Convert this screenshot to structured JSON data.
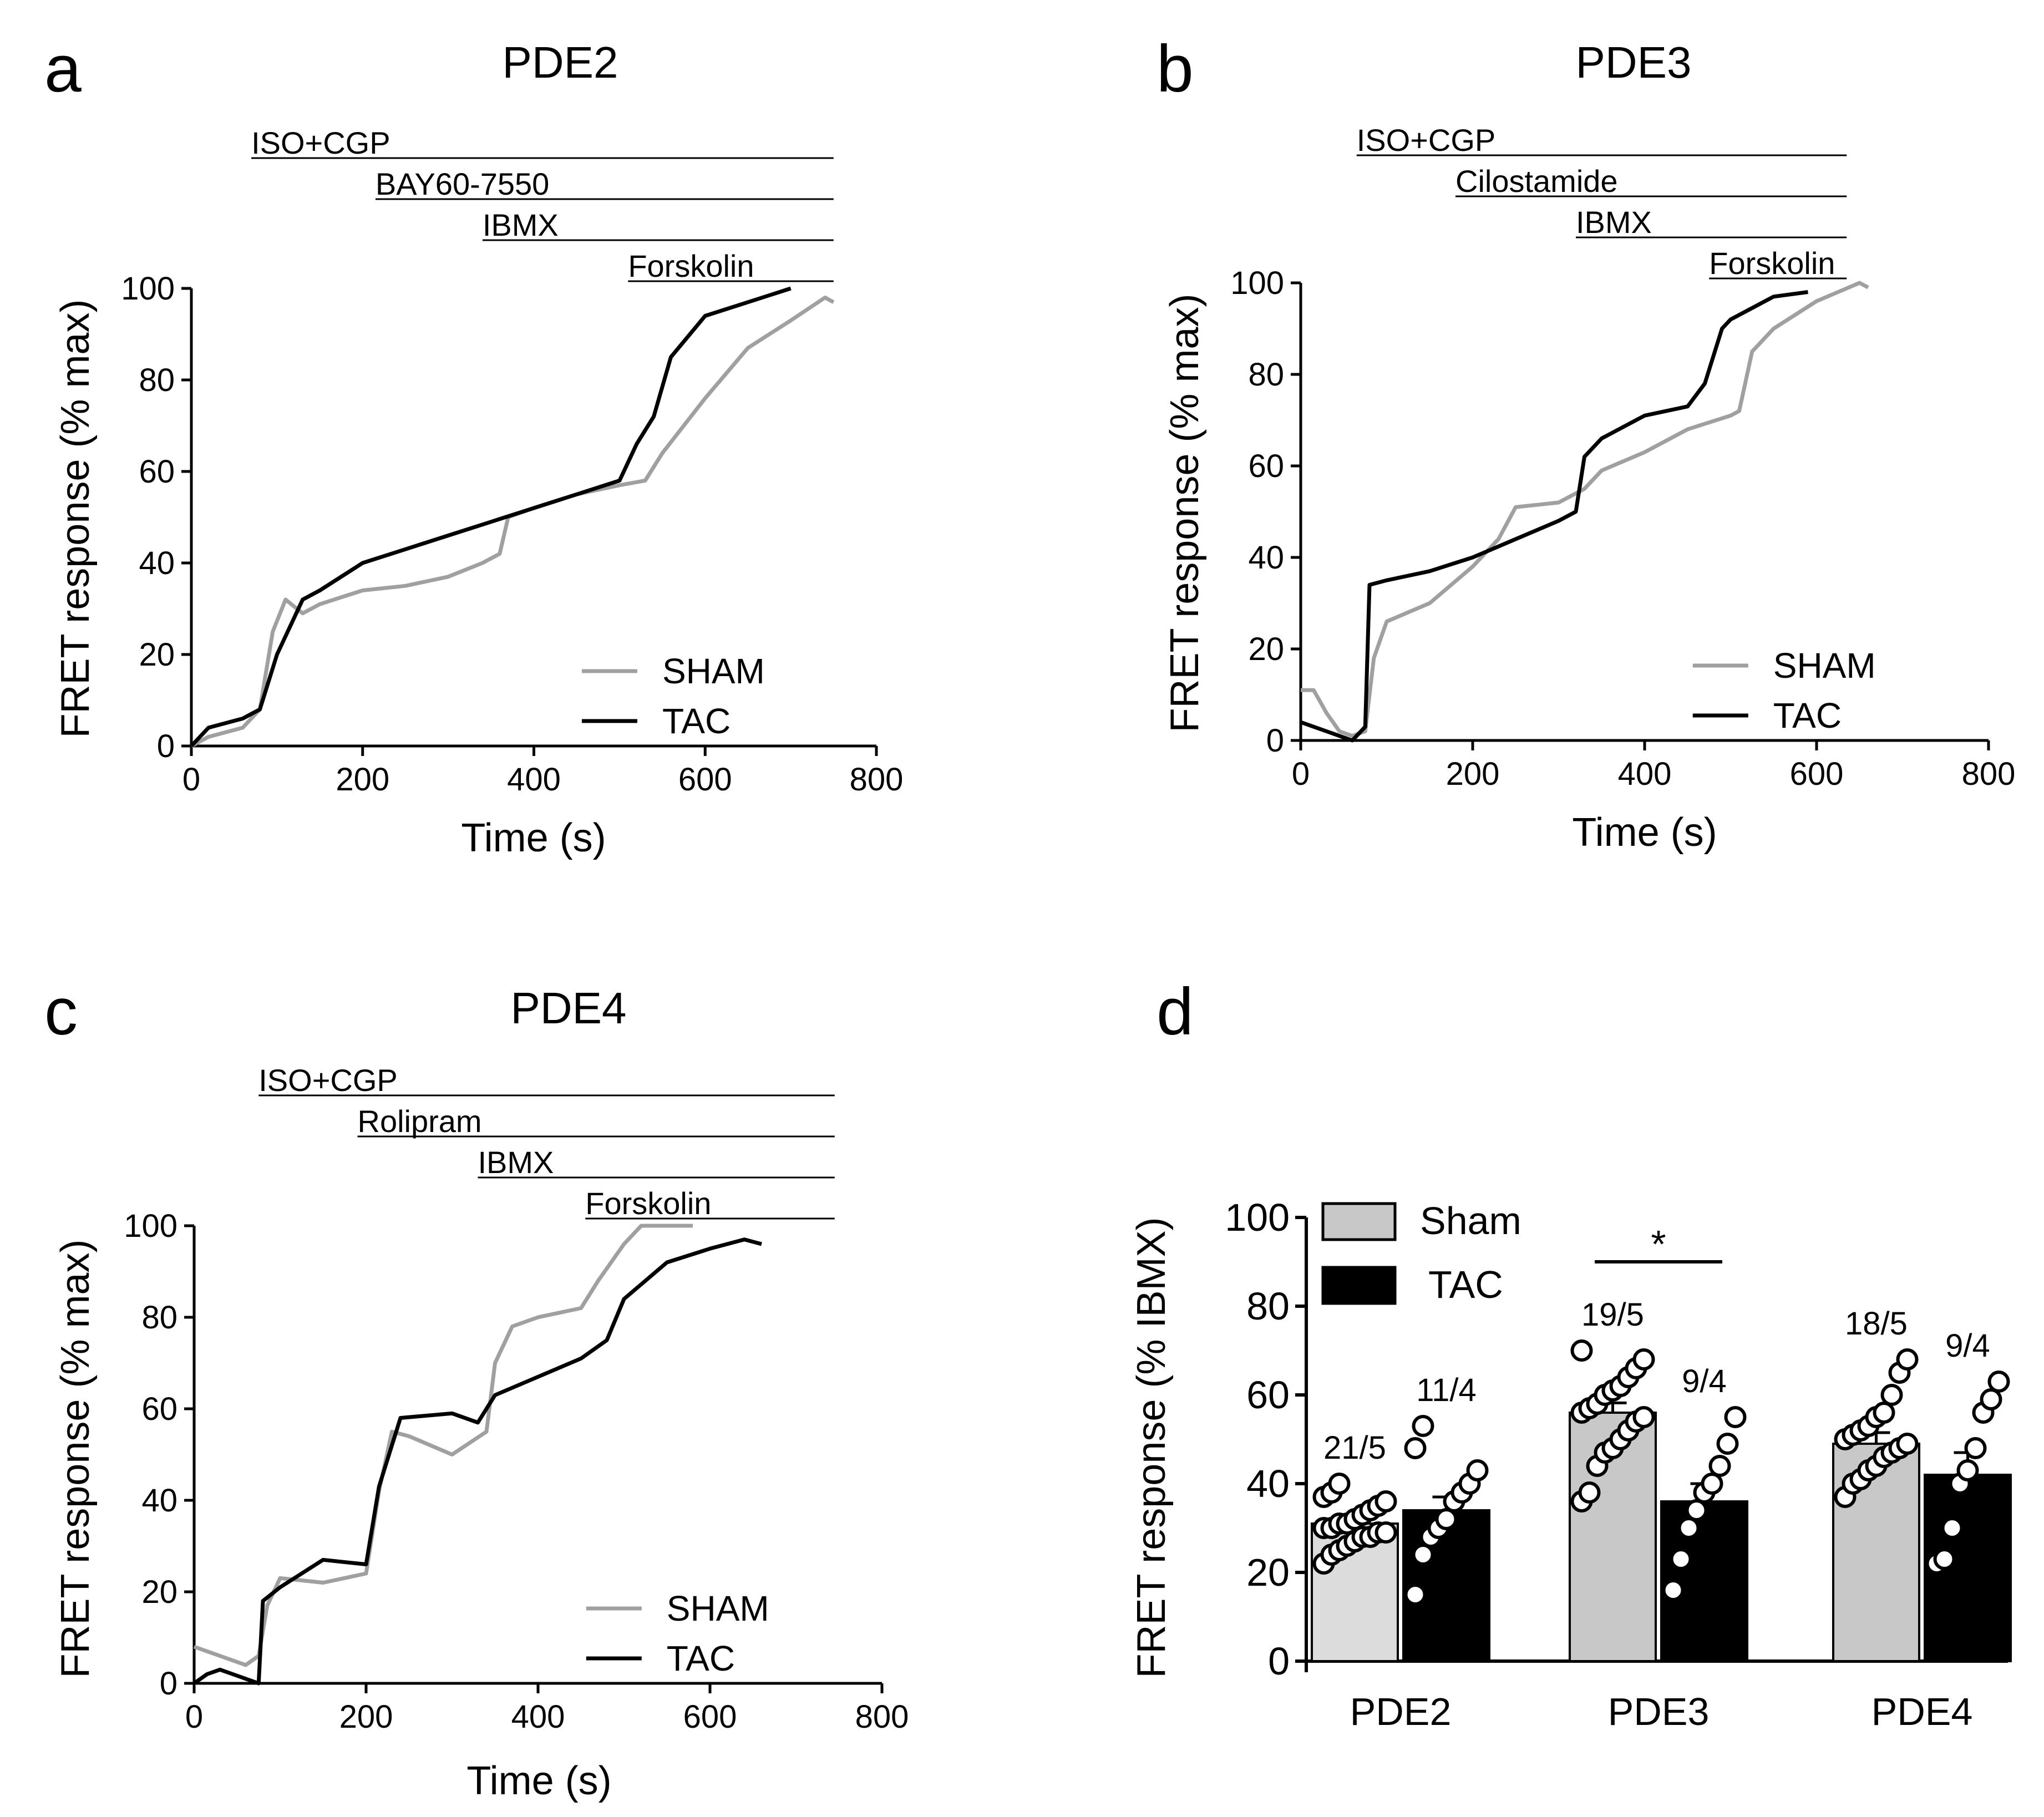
{
  "figure": {
    "panels": [
      {
        "id": "a",
        "title": "PDE2"
      },
      {
        "id": "b",
        "title": "PDE3"
      },
      {
        "id": "c",
        "title": "PDE4"
      },
      {
        "id": "d",
        "title": ""
      }
    ]
  },
  "colors": {
    "sham": "#a0a0a0",
    "tac": "#000000",
    "sham_bar": "#c8c8c8",
    "pde2_sham_bar": "#dcdcdc"
  },
  "chart_data": [
    {
      "panel": "a",
      "type": "line",
      "title": "PDE2",
      "xlabel": "Time (s)",
      "ylabel": "FRET response (% max)",
      "xlim": [
        0,
        800
      ],
      "ylim": [
        0,
        100
      ],
      "xticks": [
        0,
        200,
        400,
        600,
        800
      ],
      "yticks": [
        0,
        20,
        40,
        60,
        80,
        100
      ],
      "legend": {
        "position": "bottom-right"
      },
      "treatments": [
        {
          "label": "ISO+CGP",
          "start": 70,
          "end": 750
        },
        {
          "label": "BAY60-7550",
          "start": 215,
          "end": 750
        },
        {
          "label": "IBMX",
          "start": 340,
          "end": 750
        },
        {
          "label": "Forskolin",
          "start": 510,
          "end": 750
        }
      ],
      "series": [
        {
          "name": "SHAM",
          "color": "#a0a0a0",
          "x": [
            0,
            20,
            40,
            60,
            80,
            95,
            110,
            130,
            150,
            200,
            250,
            300,
            340,
            360,
            370,
            400,
            450,
            500,
            530,
            550,
            600,
            650,
            700,
            740,
            750
          ],
          "y": [
            0,
            2,
            3,
            4,
            8,
            25,
            32,
            29,
            31,
            34,
            35,
            37,
            40,
            42,
            50,
            52,
            55,
            57,
            58,
            64,
            76,
            87,
            93,
            98,
            97
          ]
        },
        {
          "name": "TAC",
          "color": "#000000",
          "x": [
            0,
            20,
            40,
            60,
            80,
            100,
            130,
            150,
            200,
            250,
            300,
            350,
            400,
            450,
            500,
            520,
            540,
            560,
            600,
            650,
            700
          ],
          "y": [
            0,
            4,
            5,
            6,
            8,
            20,
            32,
            34,
            40,
            43,
            46,
            49,
            52,
            55,
            58,
            66,
            72,
            85,
            94,
            97,
            100
          ]
        }
      ]
    },
    {
      "panel": "b",
      "type": "line",
      "title": "PDE3",
      "xlabel": "Time (s)",
      "ylabel": "FRET response (% max)",
      "xlim": [
        0,
        800
      ],
      "ylim": [
        0,
        100
      ],
      "xticks": [
        0,
        200,
        400,
        600,
        800
      ],
      "yticks": [
        0,
        20,
        40,
        60,
        80,
        100
      ],
      "legend": {
        "position": "bottom-right"
      },
      "treatments": [
        {
          "label": "ISO+CGP",
          "start": 65,
          "end": 635
        },
        {
          "label": "Cilostamide",
          "start": 180,
          "end": 635
        },
        {
          "label": "IBMX",
          "start": 320,
          "end": 635
        },
        {
          "label": "Forskolin",
          "start": 475,
          "end": 635
        }
      ],
      "series": [
        {
          "name": "SHAM",
          "color": "#a0a0a0",
          "x": [
            0,
            15,
            30,
            45,
            60,
            75,
            85,
            100,
            150,
            200,
            230,
            250,
            300,
            330,
            350,
            400,
            450,
            500,
            510,
            525,
            550,
            600,
            650,
            660
          ],
          "y": [
            11,
            11,
            6,
            2,
            1,
            2,
            18,
            26,
            30,
            38,
            44,
            51,
            52,
            55,
            59,
            63,
            68,
            71,
            72,
            85,
            90,
            96,
            100,
            99
          ]
        },
        {
          "name": "TAC",
          "color": "#000000",
          "x": [
            0,
            15,
            30,
            45,
            60,
            75,
            80,
            100,
            150,
            200,
            250,
            300,
            320,
            330,
            350,
            400,
            450,
            470,
            490,
            500,
            550,
            590
          ],
          "y": [
            4,
            3,
            2,
            1,
            0,
            3,
            34,
            35,
            37,
            40,
            44,
            48,
            50,
            62,
            66,
            71,
            73,
            78,
            90,
            92,
            97,
            98
          ]
        }
      ]
    },
    {
      "panel": "c",
      "type": "line",
      "title": "PDE4",
      "xlabel": "Time (s)",
      "ylabel": "FRET response (% max)",
      "xlim": [
        0,
        800
      ],
      "ylim": [
        0,
        100
      ],
      "xticks": [
        0,
        200,
        400,
        600,
        800
      ],
      "yticks": [
        0,
        20,
        40,
        60,
        80,
        100
      ],
      "legend": {
        "position": "bottom-right"
      },
      "treatments": [
        {
          "label": "ISO+CGP",
          "start": 75,
          "end": 745
        },
        {
          "label": "Rolipram",
          "start": 190,
          "end": 745
        },
        {
          "label": "IBMX",
          "start": 330,
          "end": 745
        },
        {
          "label": "Forskolin",
          "start": 455,
          "end": 745
        }
      ],
      "series": [
        {
          "name": "SHAM",
          "color": "#a0a0a0",
          "x": [
            0,
            15,
            30,
            45,
            60,
            75,
            85,
            100,
            150,
            200,
            215,
            230,
            250,
            300,
            340,
            350,
            370,
            400,
            450,
            470,
            500,
            520,
            550,
            580
          ],
          "y": [
            8,
            7,
            6,
            5,
            4,
            6,
            17,
            23,
            22,
            24,
            42,
            55,
            54,
            50,
            55,
            70,
            78,
            80,
            82,
            88,
            96,
            100,
            100,
            100
          ]
        },
        {
          "name": "TAC",
          "color": "#000000",
          "x": [
            0,
            15,
            30,
            45,
            60,
            75,
            80,
            100,
            150,
            200,
            215,
            240,
            300,
            330,
            350,
            400,
            450,
            480,
            500,
            550,
            600,
            640,
            660
          ],
          "y": [
            0,
            2,
            3,
            2,
            1,
            0,
            18,
            21,
            27,
            26,
            43,
            58,
            59,
            57,
            63,
            67,
            71,
            75,
            84,
            92,
            95,
            97,
            96
          ]
        }
      ]
    },
    {
      "panel": "d",
      "type": "bar",
      "xlabel": "",
      "ylabel": "FRET response (% IBMX)",
      "ylim": [
        0,
        100
      ],
      "yticks": [
        0,
        20,
        40,
        60,
        80,
        100
      ],
      "categories": [
        "PDE2",
        "PDE3",
        "PDE4"
      ],
      "legend": {
        "position": "top-left"
      },
      "significance": {
        "between": [
          "PDE3 Sham",
          "PDE3 TAC"
        ],
        "label": "*"
      },
      "series": [
        {
          "name": "Sham",
          "color": "#c8c8c8",
          "values": [
            31,
            56,
            49
          ],
          "sem": [
            1.3,
            2.2,
            2.5
          ],
          "n_labels": [
            "21/5",
            "19/5",
            "18/5"
          ],
          "points": [
            [
              22,
              24,
              25,
              26,
              27,
              28,
              28,
              29,
              29,
              30,
              30,
              31,
              31,
              32,
              33,
              34,
              35,
              36,
              37,
              38,
              40
            ],
            [
              36,
              38,
              44,
              47,
              48,
              50,
              52,
              54,
              55,
              56,
              57,
              58,
              60,
              61,
              62,
              64,
              66,
              68,
              70
            ],
            [
              37,
              40,
              41,
              43,
              44,
              46,
              47,
              48,
              49,
              50,
              51,
              52,
              53,
              55,
              56,
              60,
              65,
              68
            ]
          ]
        },
        {
          "name": "TAC",
          "color": "#000000",
          "values": [
            34,
            36,
            42
          ],
          "sem": [
            3,
            4,
            5
          ],
          "n_labels": [
            "11/4",
            "9/4",
            "9/4"
          ],
          "points": [
            [
              15,
              24,
              28,
              30,
              32,
              36,
              38,
              40,
              43,
              48,
              53
            ],
            [
              16,
              23,
              30,
              34,
              38,
              40,
              44,
              49,
              55
            ],
            [
              22,
              23,
              30,
              40,
              43,
              48,
              56,
              59,
              63
            ]
          ]
        }
      ]
    }
  ]
}
